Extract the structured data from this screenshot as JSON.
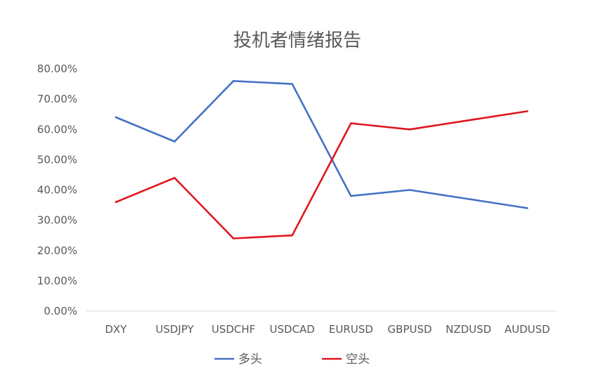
{
  "chart_data": {
    "type": "line",
    "title": "投机者情绪报告",
    "categories": [
      "DXY",
      "USDJPY",
      "USDCHF",
      "USDCAD",
      "EURUSD",
      "GBPUSD",
      "NZDUSD",
      "AUDUSD"
    ],
    "y_ticks": [
      "0.00%",
      "10.00%",
      "20.00%",
      "30.00%",
      "40.00%",
      "50.00%",
      "60.00%",
      "70.00%",
      "80.00%"
    ],
    "ylim": [
      0,
      0.8
    ],
    "grid": false,
    "legend_position": "bottom",
    "series": [
      {
        "name": "多头",
        "color": "#4472C4",
        "values": [
          0.64,
          0.56,
          0.76,
          0.75,
          0.38,
          0.4,
          0.37,
          0.34
        ]
      },
      {
        "name": "空头",
        "color": "#E0161E",
        "values": [
          0.36,
          0.44,
          0.24,
          0.25,
          0.62,
          0.6,
          0.63,
          0.66
        ]
      }
    ]
  }
}
